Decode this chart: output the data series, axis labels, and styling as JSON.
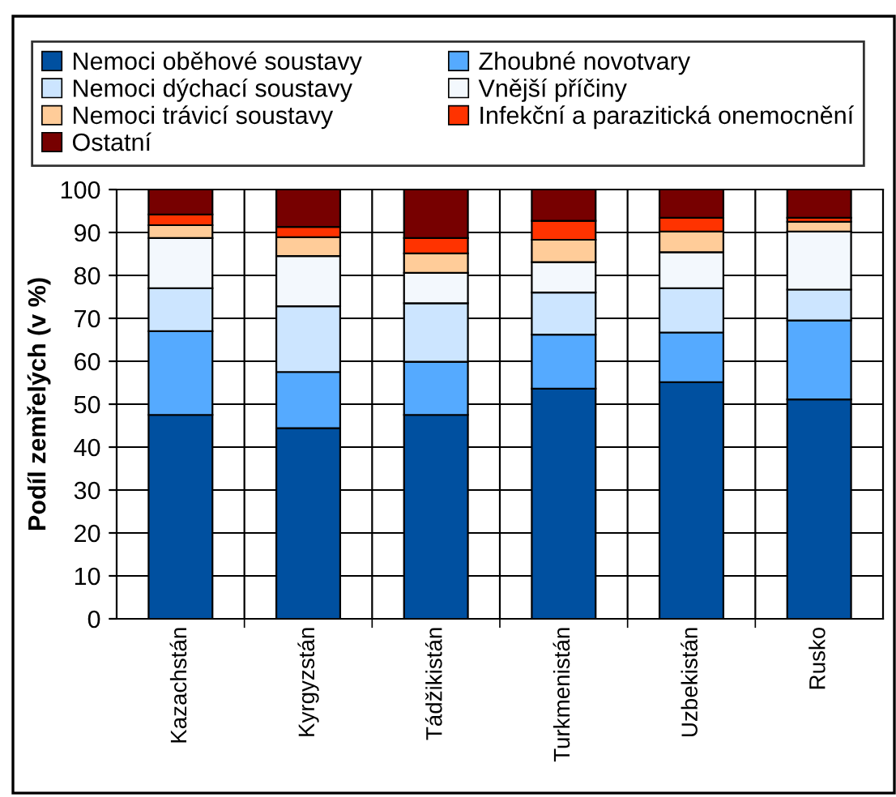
{
  "chart_data": {
    "type": "bar",
    "stacked": true,
    "ylabel": "Podíl zemřelých (v %)",
    "categories": [
      "Kazachstán",
      "Kyrgyzstán",
      "Tádžikistán",
      "Turkmenistán",
      "Uzbekistán",
      "Rusko"
    ],
    "series": [
      {
        "name": "Nemoci oběhové soustavy",
        "color": "#0050a0",
        "values": [
          47.5,
          44.4,
          47.5,
          53.6,
          55.1,
          51.1
        ]
      },
      {
        "name": "Zhoubné novotvary",
        "color": "#55aaff",
        "values": [
          19.5,
          13.1,
          12.4,
          12.6,
          11.6,
          18.4
        ]
      },
      {
        "name": "Nemoci dýchací soustavy",
        "color": "#cce5ff",
        "values": [
          10,
          15.3,
          13.6,
          9.8,
          10.3,
          7.2
        ]
      },
      {
        "name": "Vnější příčiny",
        "color": "#f3f8fd",
        "values": [
          11.7,
          11.7,
          7.1,
          7.1,
          8.4,
          13.5
        ]
      },
      {
        "name": "Nemoci trávicí soustavy",
        "color": "#ffcc99",
        "values": [
          3,
          4.4,
          4.5,
          5.2,
          4.8,
          2.3
        ]
      },
      {
        "name": "Infekční a parazitická onemocnění",
        "color": "#ff3300",
        "values": [
          2.5,
          2.4,
          3.6,
          4.4,
          3.2,
          0.9
        ]
      },
      {
        "name": "Ostatní",
        "color": "#770000",
        "values": [
          5.8,
          8.7,
          11.3,
          7.3,
          6.6,
          6.6
        ]
      }
    ],
    "ylim": [
      0,
      100
    ],
    "yticks": [
      0,
      10,
      20,
      30,
      40,
      50,
      60,
      70,
      80,
      90,
      100
    ],
    "grid": true,
    "legend": "top"
  }
}
